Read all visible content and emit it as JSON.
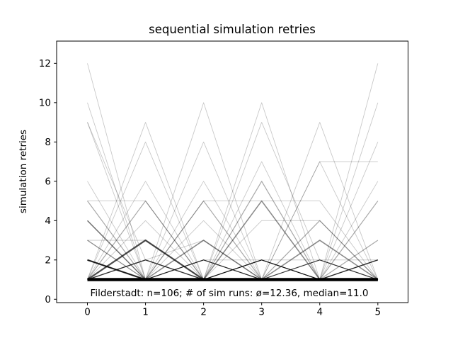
{
  "figure": {
    "background_color": "#ffffff",
    "line_color": "#000000"
  },
  "chart_data": {
    "type": "line",
    "title": "sequential simulation retries",
    "ylabel": "simulation retries",
    "xlabel": "",
    "annotation": "Filderstadt: n=106; # of sim runs: ø=12.36, median=11.0",
    "stats": {
      "location": "Filderstadt",
      "n": 106,
      "runs_mean": 12.36,
      "runs_median": 11.0
    },
    "x": [
      0,
      1,
      2,
      3,
      4,
      5
    ],
    "xticks": [
      "0",
      "1",
      "2",
      "3",
      "4",
      "5"
    ],
    "yticks": [
      "0",
      "2",
      "4",
      "6",
      "8",
      "10",
      "12"
    ],
    "xlim": [
      -0.53,
      5.52
    ],
    "ylim": [
      -0.17,
      13.13
    ],
    "grid": false,
    "legend_position": "none",
    "runs_note": "each run is a sequence of retry counts at x=0..5; count = number of identical runs (opacity/width encode frequency); values estimated from pixels",
    "runs": [
      {
        "y": [
          1,
          1,
          1,
          1,
          1,
          1
        ],
        "count": 12
      },
      {
        "y": [
          2,
          1,
          1,
          1,
          1,
          1
        ],
        "count": 5
      },
      {
        "y": [
          1,
          3,
          1,
          1,
          1,
          1
        ],
        "count": 5
      },
      {
        "y": [
          1,
          1,
          3,
          1,
          1,
          1
        ],
        "count": 3
      },
      {
        "y": [
          1,
          1,
          1,
          5,
          1,
          1
        ],
        "count": 3
      },
      {
        "y": [
          1,
          1,
          1,
          1,
          3,
          1
        ],
        "count": 3
      },
      {
        "y": [
          4,
          1,
          1,
          1,
          1,
          1
        ],
        "count": 3
      },
      {
        "y": [
          1,
          2,
          1,
          1,
          1,
          1
        ],
        "count": 3
      },
      {
        "y": [
          1,
          1,
          1,
          1,
          1,
          2
        ],
        "count": 3
      },
      {
        "y": [
          3,
          1,
          1,
          1,
          1,
          1
        ],
        "count": 2
      },
      {
        "y": [
          5,
          1,
          1,
          1,
          1,
          1
        ],
        "count": 2
      },
      {
        "y": [
          1,
          5,
          1,
          1,
          1,
          1
        ],
        "count": 2
      },
      {
        "y": [
          1,
          1,
          5,
          1,
          1,
          1
        ],
        "count": 2
      },
      {
        "y": [
          1,
          1,
          1,
          6,
          1,
          1
        ],
        "count": 2
      },
      {
        "y": [
          1,
          1,
          1,
          1,
          4,
          1
        ],
        "count": 2
      },
      {
        "y": [
          1,
          1,
          1,
          1,
          1,
          5
        ],
        "count": 2
      },
      {
        "y": [
          1,
          1,
          1,
          1,
          1,
          3
        ],
        "count": 2
      },
      {
        "y": [
          1,
          1,
          2,
          1,
          1,
          1
        ],
        "count": 2
      },
      {
        "y": [
          1,
          1,
          1,
          2,
          1,
          1
        ],
        "count": 2
      },
      {
        "y": [
          1,
          1,
          1,
          1,
          2,
          1
        ],
        "count": 2
      },
      {
        "y": [
          1,
          2,
          1,
          2,
          1,
          1
        ],
        "count": 2
      },
      {
        "y": [
          2,
          1,
          2,
          1,
          1,
          1
        ],
        "count": 2
      },
      {
        "y": [
          1,
          1,
          2,
          1,
          2,
          1
        ],
        "count": 2
      },
      {
        "y": [
          1,
          1,
          1,
          2,
          1,
          2
        ],
        "count": 2
      },
      {
        "y": [
          12,
          1,
          1,
          1,
          1,
          1
        ],
        "count": 1
      },
      {
        "y": [
          10,
          1,
          2,
          1,
          1,
          1
        ],
        "count": 1
      },
      {
        "y": [
          9,
          1,
          1,
          2,
          1,
          1
        ],
        "count": 1
      },
      {
        "y": [
          9,
          2,
          1,
          1,
          1,
          1
        ],
        "count": 1
      },
      {
        "y": [
          1,
          9,
          1,
          1,
          1,
          1
        ],
        "count": 1
      },
      {
        "y": [
          1,
          8,
          1,
          1,
          1,
          1
        ],
        "count": 1
      },
      {
        "y": [
          2,
          1,
          10,
          1,
          1,
          1
        ],
        "count": 1
      },
      {
        "y": [
          1,
          1,
          1,
          10,
          1,
          1
        ],
        "count": 1
      },
      {
        "y": [
          1,
          1,
          8,
          1,
          1,
          1
        ],
        "count": 1
      },
      {
        "y": [
          1,
          1,
          1,
          9,
          2,
          1
        ],
        "count": 1
      },
      {
        "y": [
          1,
          1,
          1,
          1,
          9,
          1
        ],
        "count": 1
      },
      {
        "y": [
          1,
          1,
          1,
          1,
          1,
          12
        ],
        "count": 1
      },
      {
        "y": [
          1,
          2,
          1,
          1,
          1,
          10
        ],
        "count": 1
      },
      {
        "y": [
          1,
          1,
          1,
          1,
          7,
          7
        ],
        "count": 1
      },
      {
        "y": [
          1,
          1,
          5,
          5,
          5,
          1
        ],
        "count": 1
      },
      {
        "y": [
          1,
          1,
          1,
          4,
          4,
          1
        ],
        "count": 1
      },
      {
        "y": [
          3,
          3,
          1,
          1,
          1,
          1
        ],
        "count": 1
      },
      {
        "y": [
          5,
          5,
          1,
          1,
          1,
          1
        ],
        "count": 1
      },
      {
        "y": [
          6,
          1,
          1,
          2,
          1,
          1
        ],
        "count": 1
      },
      {
        "y": [
          1,
          6,
          1,
          2,
          1,
          1
        ],
        "count": 1
      },
      {
        "y": [
          2,
          1,
          1,
          1,
          7,
          1
        ],
        "count": 1
      },
      {
        "y": [
          1,
          1,
          1,
          7,
          1,
          2
        ],
        "count": 1
      },
      {
        "y": [
          1,
          1,
          6,
          1,
          1,
          1
        ],
        "count": 1
      },
      {
        "y": [
          1,
          4,
          1,
          2,
          1,
          1
        ],
        "count": 1
      },
      {
        "y": [
          2,
          1,
          4,
          1,
          2,
          1
        ],
        "count": 1
      },
      {
        "y": [
          1,
          2,
          3,
          1,
          1,
          2
        ],
        "count": 1
      },
      {
        "y": [
          4,
          1,
          1,
          1,
          1,
          6
        ],
        "count": 1
      },
      {
        "y": [
          1,
          1,
          2,
          2,
          1,
          1
        ],
        "count": 1
      },
      {
        "y": [
          1,
          1,
          1,
          2,
          2,
          1
        ],
        "count": 1
      },
      {
        "y": [
          1,
          2,
          1,
          2,
          1,
          2
        ],
        "count": 1
      },
      {
        "y": [
          2,
          1,
          1,
          2,
          1,
          1
        ],
        "count": 1
      },
      {
        "y": [
          1,
          1,
          2,
          1,
          1,
          2
        ],
        "count": 1
      },
      {
        "y": [
          3,
          1,
          2,
          1,
          1,
          1
        ],
        "count": 1
      },
      {
        "y": [
          1,
          1,
          1,
          1,
          2,
          2
        ],
        "count": 1
      },
      {
        "y": [
          2,
          1,
          1,
          1,
          2,
          1
        ],
        "count": 1
      },
      {
        "y": [
          1,
          1,
          1,
          1,
          1,
          8
        ],
        "count": 1
      }
    ]
  }
}
